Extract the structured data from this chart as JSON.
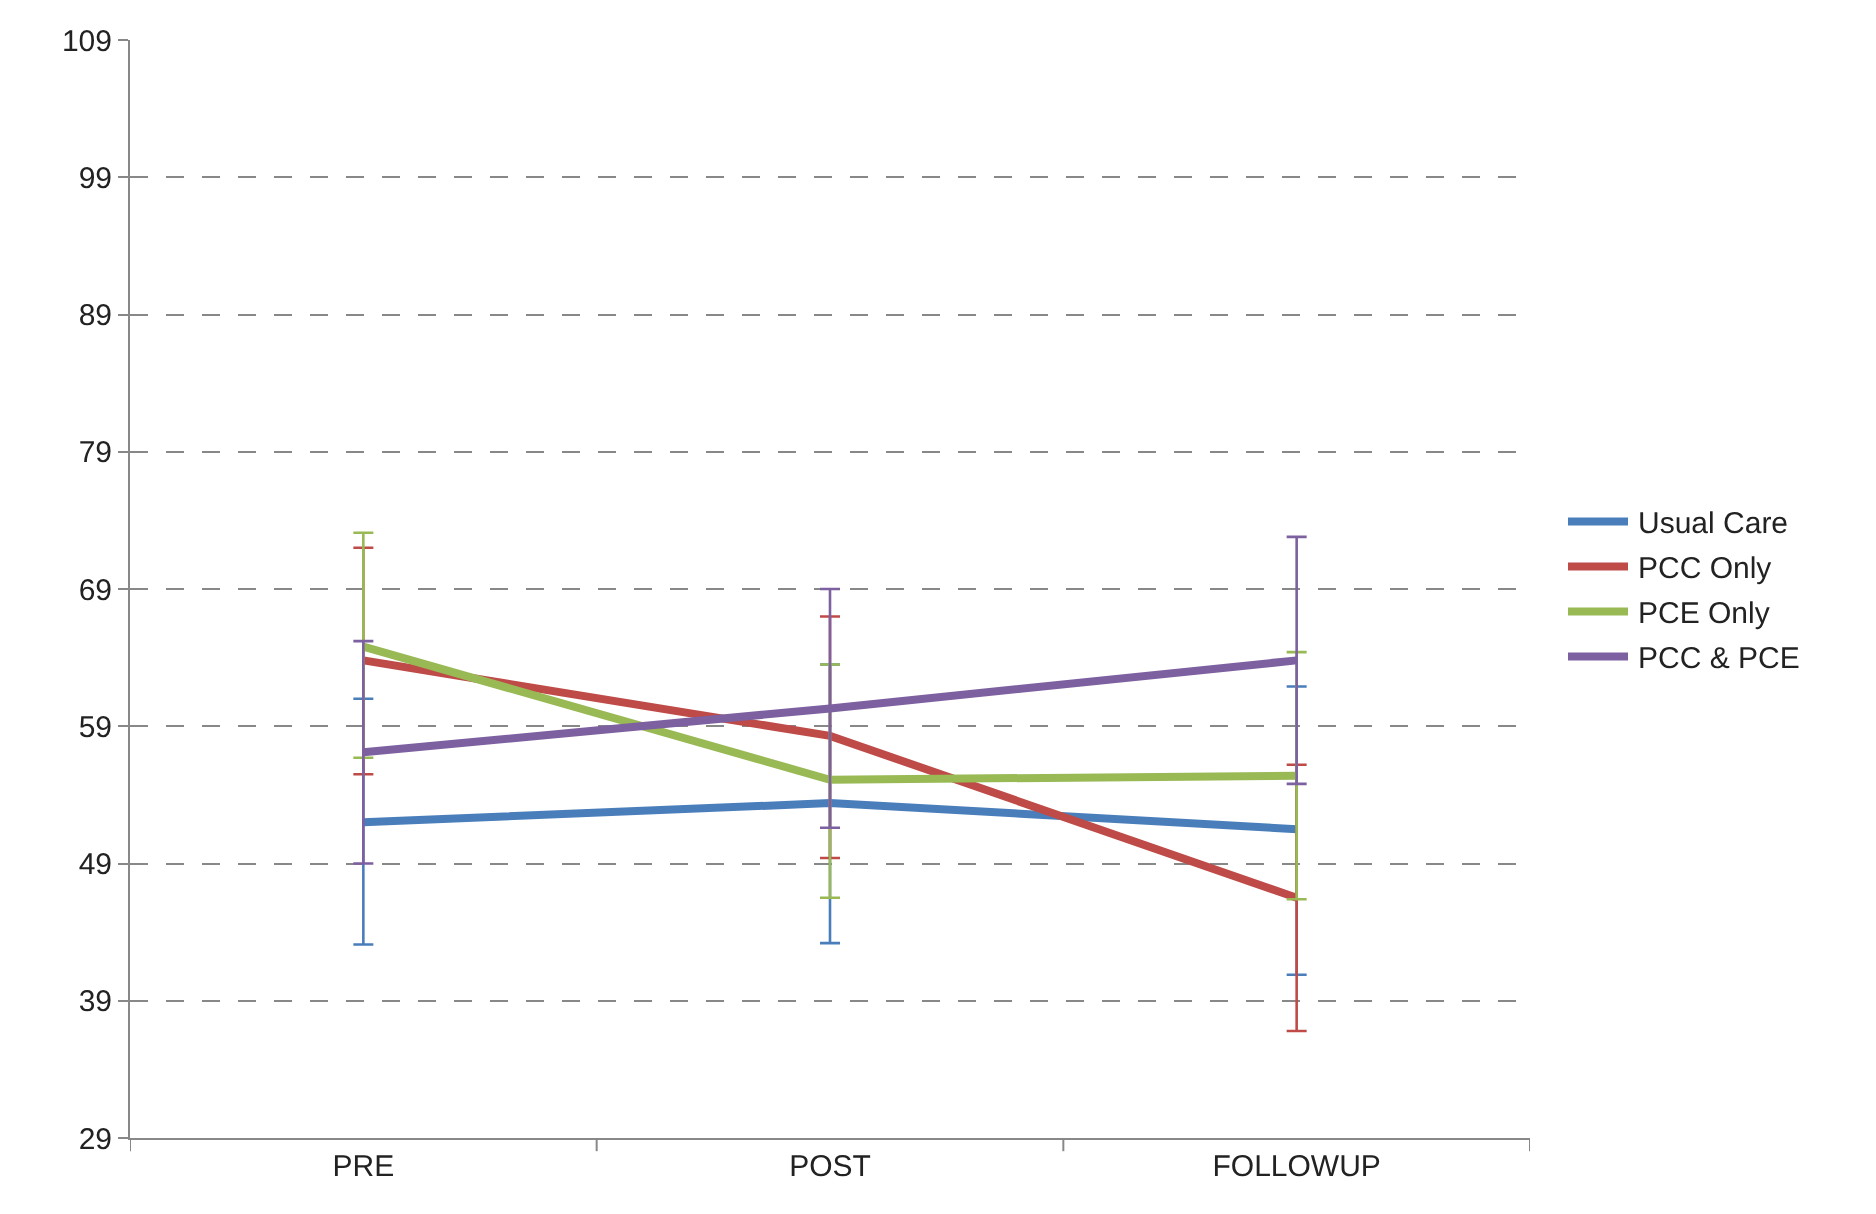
{
  "chart_data": {
    "type": "line",
    "categories": [
      "PRE",
      "POST",
      "FOLLOWUP"
    ],
    "series": [
      {
        "name": "Usual Care",
        "color": "#4a7ebb",
        "values": [
          52.0,
          53.4,
          51.5
        ],
        "errors": [
          [
            43.1,
            61.0
          ],
          [
            43.2,
            63.5
          ],
          [
            40.9,
            61.9
          ]
        ]
      },
      {
        "name": "PCC Only",
        "color": "#be4b48",
        "values": [
          63.8,
          58.3,
          46.5
        ],
        "errors": [
          [
            55.5,
            72.0
          ],
          [
            49.4,
            67.0
          ],
          [
            36.8,
            56.2
          ]
        ]
      },
      {
        "name": "PCE Only",
        "color": "#98b954",
        "values": [
          64.8,
          55.1,
          55.4
        ],
        "errors": [
          [
            56.7,
            73.1
          ],
          [
            46.5,
            63.5
          ],
          [
            46.4,
            64.4
          ]
        ]
      },
      {
        "name": "PCC & PCE",
        "color": "#7d60a0",
        "values": [
          57.1,
          60.3,
          63.8
        ],
        "errors": [
          [
            49.0,
            65.2
          ],
          [
            51.6,
            69.0
          ],
          [
            54.8,
            72.8
          ]
        ]
      }
    ],
    "ylim": [
      29,
      109
    ],
    "yticks": [
      29,
      39,
      49,
      59,
      69,
      79,
      89,
      99,
      109
    ],
    "grid": "y",
    "legend": "right",
    "marker": "none",
    "line_style": "solid"
  }
}
